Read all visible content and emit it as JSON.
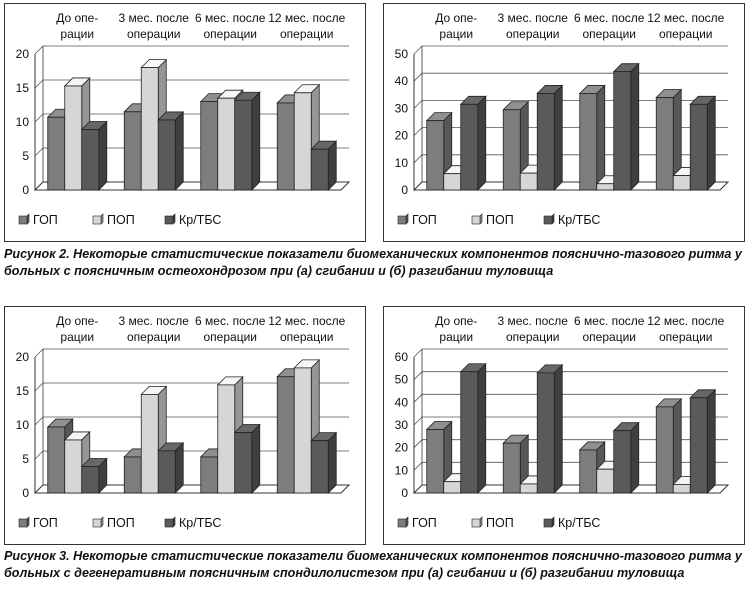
{
  "captions": {
    "fig2": "Рисунок 2. Некоторые статистические показатели биомеханических компонентов пояснично-тазового ритма у больных с поясничным остеохондрозом при (а) сгибании и (б) разгибании туловища",
    "fig3": "Рисунок 3. Некоторые статистические показатели биомеханических компонентов пояснично-тазового ритма у больных с дегенеративным поясничным спондилолистезом при (а) сгибании и (б) разгибании туловища"
  },
  "colors": {
    "ГОП": "#7d7d7d",
    "ПОП": "#d6d6d6",
    "Кр/ТБС": "#5a5a5a"
  },
  "chart_data": [
    {
      "id": "fig2a",
      "type": "bar",
      "categories": [
        [
          "До опе-",
          "рации"
        ],
        [
          "3 мес. после",
          "операции"
        ],
        [
          "6 мес. после",
          "операции"
        ],
        [
          "12 мес. после",
          "операции"
        ]
      ],
      "ylim": [
        0,
        20
      ],
      "yticks": [
        0,
        5,
        10,
        15,
        20
      ],
      "series": [
        {
          "name": "ГОП",
          "values": [
            10.7,
            11.5,
            13.0,
            12.8
          ]
        },
        {
          "name": "ПОП",
          "values": [
            15.3,
            18.0,
            13.5,
            14.3
          ]
        },
        {
          "name": "Кр/ТБС",
          "values": [
            8.9,
            10.3,
            13.2,
            6.0
          ]
        }
      ],
      "legend": "bottom"
    },
    {
      "id": "fig2b",
      "type": "bar",
      "categories": [
        [
          "До опе-",
          "рации"
        ],
        [
          "3 мес. после",
          "операции"
        ],
        [
          "6 мес. после",
          "операции"
        ],
        [
          "12 мес. после",
          "операции"
        ]
      ],
      "ylim": [
        0,
        50
      ],
      "yticks": [
        0,
        10,
        20,
        30,
        40,
        50
      ],
      "series": [
        {
          "name": "ГОП",
          "values": [
            25.5,
            29.5,
            35.5,
            34.0
          ]
        },
        {
          "name": "ПОП",
          "values": [
            6.0,
            6.2,
            2.3,
            5.3
          ]
        },
        {
          "name": "Кр/ТБС",
          "values": [
            31.5,
            35.5,
            43.5,
            31.5
          ]
        }
      ],
      "legend": "bottom"
    },
    {
      "id": "fig3a",
      "type": "bar",
      "categories": [
        [
          "До опе-",
          "рации"
        ],
        [
          "3 мес. после",
          "операции"
        ],
        [
          "6 мес. после",
          "операции"
        ],
        [
          "12 мес. после",
          "операции"
        ]
      ],
      "ylim": [
        0,
        20
      ],
      "yticks": [
        0,
        5,
        10,
        15,
        20
      ],
      "series": [
        {
          "name": "ГОП",
          "values": [
            9.7,
            5.3,
            5.3,
            17.1
          ]
        },
        {
          "name": "ПОП",
          "values": [
            7.8,
            14.5,
            15.9,
            18.4
          ]
        },
        {
          "name": "Кр/ТБС",
          "values": [
            3.9,
            6.2,
            8.9,
            7.7
          ]
        }
      ],
      "legend": "bottom"
    },
    {
      "id": "fig3b",
      "type": "bar",
      "categories": [
        [
          "До опе-",
          "рации"
        ],
        [
          "3 мес. после",
          "операции"
        ],
        [
          "6 мес. после",
          "операции"
        ],
        [
          "12 мес. после",
          "операции"
        ]
      ],
      "ylim": [
        0,
        60
      ],
      "yticks": [
        0,
        10,
        20,
        30,
        40,
        50,
        60
      ],
      "series": [
        {
          "name": "ГОП",
          "values": [
            28.0,
            22.0,
            19.0,
            38.0
          ]
        },
        {
          "name": "ПОП",
          "values": [
            5.0,
            4.0,
            10.5,
            3.8
          ]
        },
        {
          "name": "Кр/ТБС",
          "values": [
            53.5,
            53.0,
            27.5,
            42.0
          ]
        }
      ],
      "legend": "bottom"
    }
  ]
}
